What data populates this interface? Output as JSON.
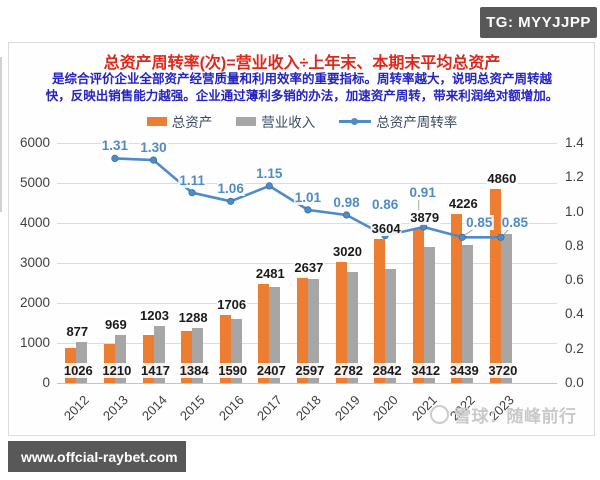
{
  "badges": {
    "telegram": "TG: MYYJJPP",
    "website": "www.offcial-raybet.com"
  },
  "header": {
    "title": "总资产周转率(次)=营业收入÷上年末、本期末平均总资产",
    "description_lines": [
      "是综合评价企业全部资产经营质量和利用效率的重要指标。周转率越大，说明总资产周转越",
      "快，反映出销售能力越强。企业通过薄利多销的办法，加速资产周转，带来利润绝对额增加。"
    ]
  },
  "legend": [
    {
      "label": "总资产",
      "color": "#ed7d31",
      "type": "bar"
    },
    {
      "label": "营业收入",
      "color": "#a6a6a6",
      "type": "bar"
    },
    {
      "label": "总资产周转率",
      "color": "#4e8bc8",
      "type": "line"
    }
  ],
  "watermark": {
    "text": "雪球：随峰前行",
    "logo": "snowball-ring-icon"
  },
  "colors": {
    "total_assets": "#ed7d31",
    "revenue": "#a6a6a6",
    "turnover_line": "#4e8bc8",
    "title_red": "#e0271b",
    "description_blue": "#2524c0",
    "badge_gray": "#585858"
  },
  "chart_data": {
    "type": "combo",
    "title": "总资产周转率(次)=营业收入÷上年末、本期末平均总资产",
    "categories": [
      "2012",
      "2013",
      "2014",
      "2015",
      "2016",
      "2017",
      "2018",
      "2019",
      "2020",
      "2021",
      "2022",
      "2023"
    ],
    "series": [
      {
        "name": "总资产",
        "type": "bar",
        "axis": "left",
        "color": "#ed7d31",
        "values": [
          877,
          969,
          1203,
          1288,
          1706,
          2481,
          2637,
          3020,
          3604,
          3879,
          4226,
          4860
        ]
      },
      {
        "name": "营业收入",
        "type": "bar",
        "axis": "left",
        "color": "#a6a6a6",
        "values": [
          1026,
          1210,
          1417,
          1384,
          1590,
          2407,
          2597,
          2782,
          2842,
          3412,
          3439,
          3720
        ]
      },
      {
        "name": "总资产周转率",
        "type": "line",
        "axis": "right",
        "color": "#4e8bc8",
        "values": [
          null,
          1.31,
          1.3,
          1.11,
          1.06,
          1.15,
          1.01,
          0.98,
          0.86,
          0.91,
          0.85,
          0.85
        ]
      }
    ],
    "axes": {
      "left": {
        "min": 0,
        "max": 6000,
        "ticks": [
          "6000",
          "5000",
          "4000",
          "3000",
          "2000",
          "1000",
          "0"
        ]
      },
      "right": {
        "min": 0,
        "max": 1.4,
        "ticks": [
          "1.4",
          "1.2",
          "1.0",
          "0.8",
          "0.6",
          "0.4",
          "0.2",
          "0.0"
        ]
      }
    },
    "grid": true,
    "legend_position": "top"
  }
}
